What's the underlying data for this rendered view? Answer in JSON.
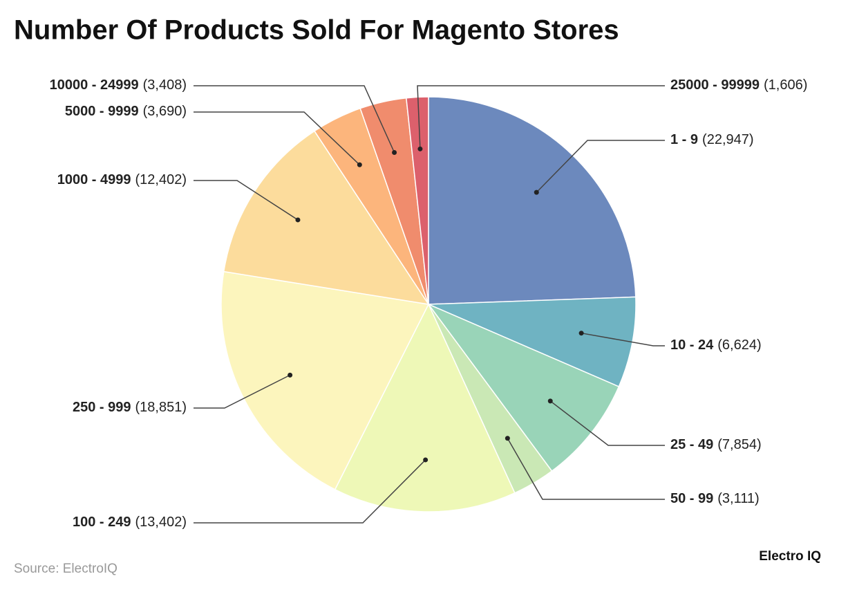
{
  "chart_data": {
    "type": "pie",
    "title": "Number Of Products Sold For Magento Stores",
    "categories": [
      "1 - 9",
      "10 - 24",
      "25 - 49",
      "50 - 99",
      "100 - 249",
      "250 - 999",
      "1000 - 4999",
      "5000 - 9999",
      "10000 - 24999",
      "25000 - 99999"
    ],
    "values": [
      22947,
      6624,
      7854,
      3111,
      13402,
      18851,
      12402,
      3690,
      3408,
      1606
    ],
    "value_labels": [
      "(22,947)",
      "(6,624)",
      "(7,854)",
      "(3,111)",
      "(13,402)",
      "(18,851)",
      "(12,402)",
      "(3,690)",
      "(3,408)",
      "(1,606)"
    ],
    "colors": [
      "#6c89bd",
      "#6fb3c2",
      "#99d4b8",
      "#cae8b5",
      "#eef8b7",
      "#fcf5bd",
      "#fcdc9c",
      "#fcb57c",
      "#f08c6d",
      "#dc606c"
    ],
    "source": "Source: ElectroIQ",
    "brand": "Electro IQ"
  }
}
